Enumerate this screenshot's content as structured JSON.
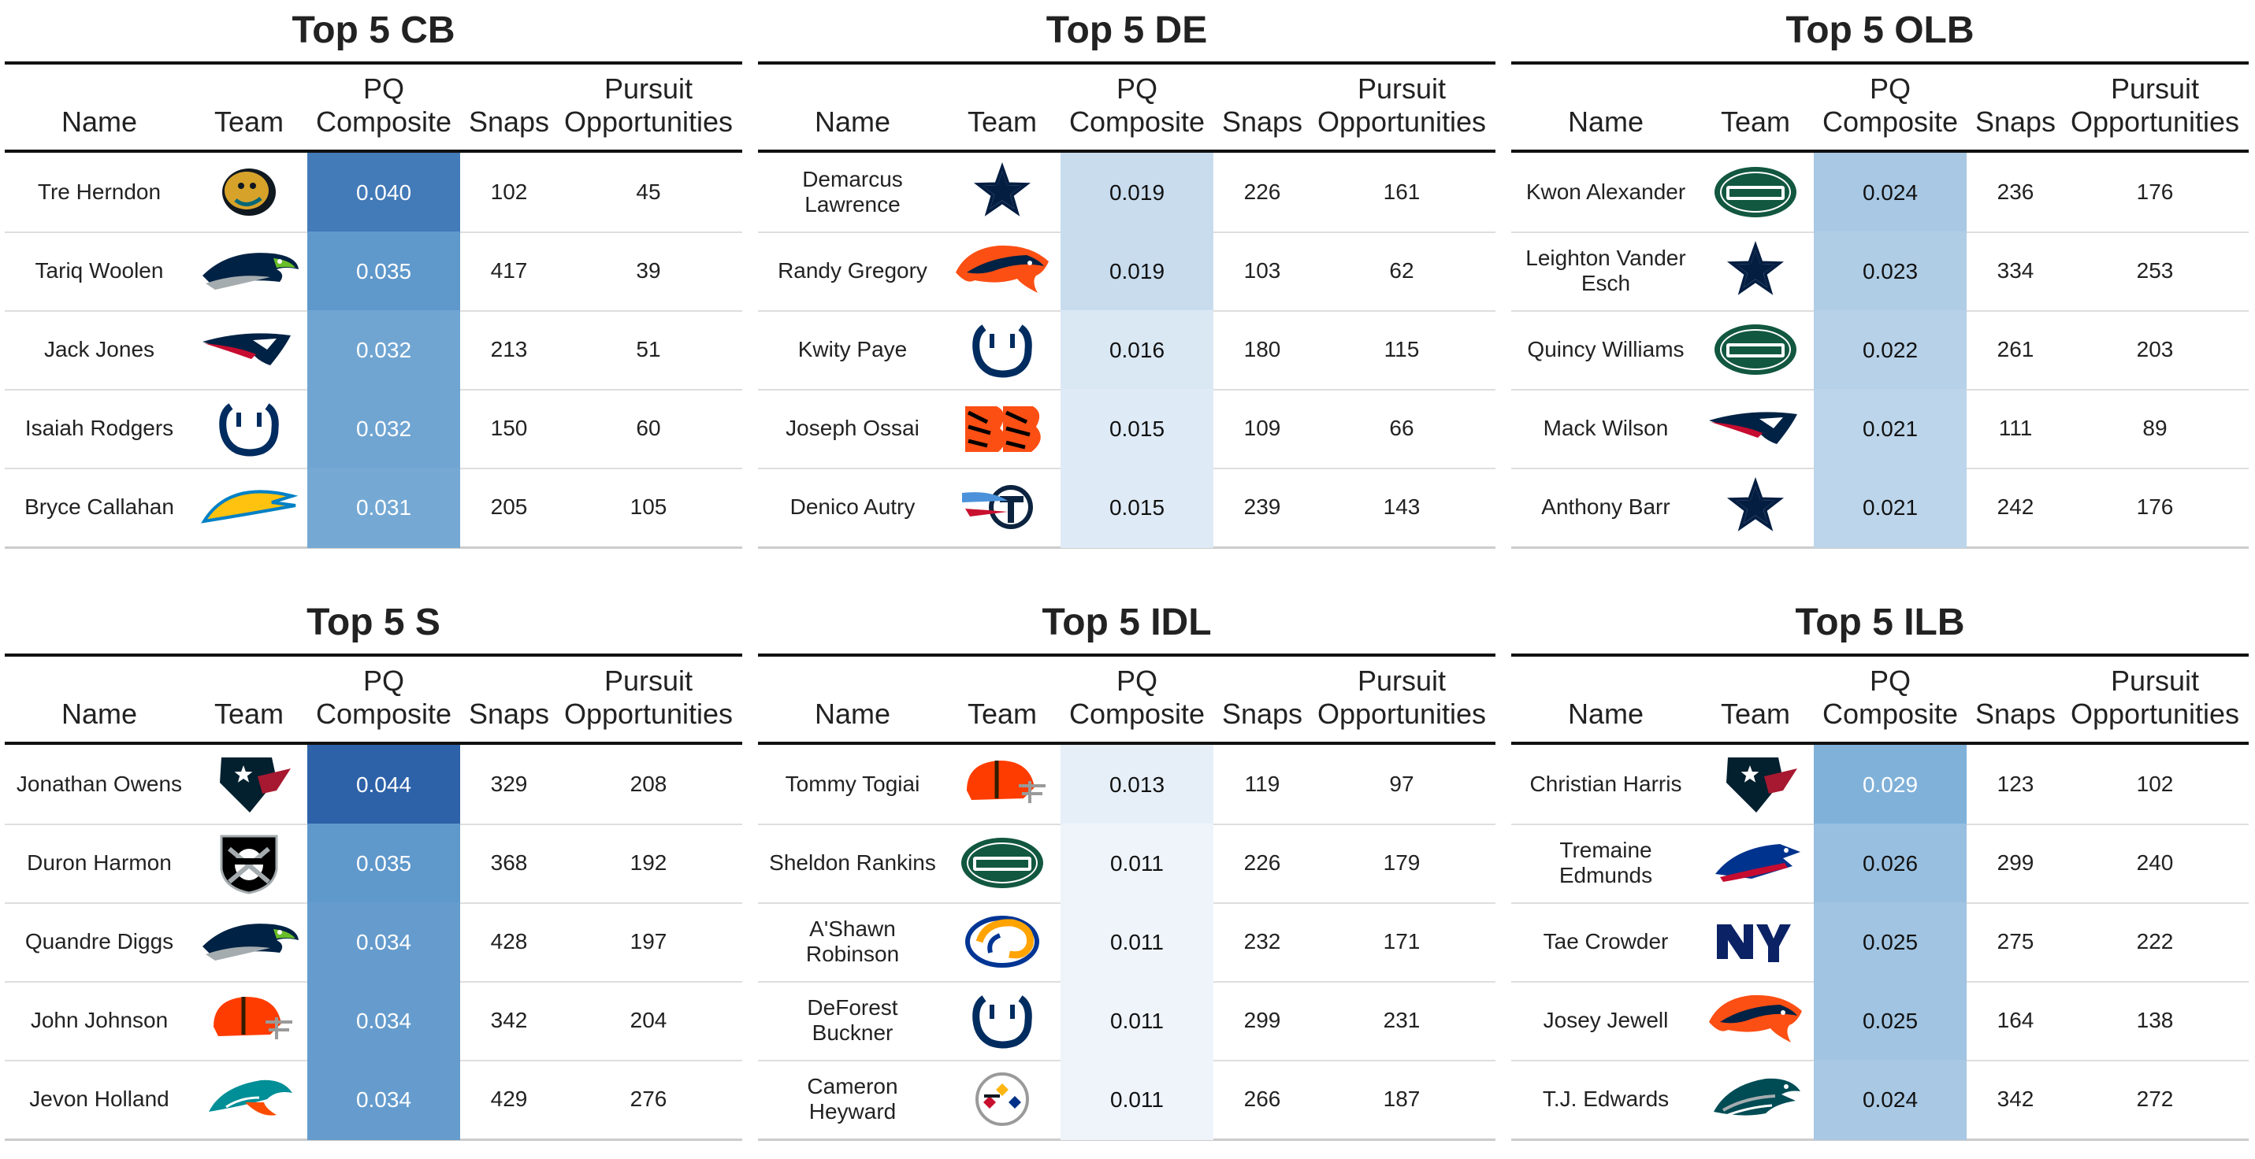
{
  "chart_data": [
    {
      "type": "table",
      "title": "Top 5 CB",
      "columns": [
        "Name",
        "Team",
        "PQ Composite",
        "Snaps",
        "Pursuit Opportunities"
      ],
      "rows": [
        {
          "name": "Tre Herndon",
          "team": "jaguars-logo",
          "pq": "0.040",
          "snaps": "102",
          "pursuit": "45"
        },
        {
          "name": "Tariq Woolen",
          "team": "seahawks-logo",
          "pq": "0.035",
          "snaps": "417",
          "pursuit": "39"
        },
        {
          "name": "Jack Jones",
          "team": "patriots-logo",
          "pq": "0.032",
          "snaps": "213",
          "pursuit": "51"
        },
        {
          "name": "Isaiah Rodgers",
          "team": "colts-logo",
          "pq": "0.032",
          "snaps": "150",
          "pursuit": "60"
        },
        {
          "name": "Bryce Callahan",
          "team": "chargers-logo",
          "pq": "0.031",
          "snaps": "205",
          "pursuit": "105"
        }
      ]
    },
    {
      "type": "table",
      "title": "Top 5 DE",
      "columns": [
        "Name",
        "Team",
        "PQ Composite",
        "Snaps",
        "Pursuit Opportunities"
      ],
      "rows": [
        {
          "name": "Demarcus Lawrence",
          "team": "cowboys-logo",
          "pq": "0.019",
          "snaps": "226",
          "pursuit": "161"
        },
        {
          "name": "Randy Gregory",
          "team": "broncos-logo",
          "pq": "0.019",
          "snaps": "103",
          "pursuit": "62"
        },
        {
          "name": "Kwity Paye",
          "team": "colts-logo",
          "pq": "0.016",
          "snaps": "180",
          "pursuit": "115"
        },
        {
          "name": "Joseph Ossai",
          "team": "bengals-logo",
          "pq": "0.015",
          "snaps": "109",
          "pursuit": "66"
        },
        {
          "name": "Denico Autry",
          "team": "titans-logo",
          "pq": "0.015",
          "snaps": "239",
          "pursuit": "143"
        }
      ]
    },
    {
      "type": "table",
      "title": "Top 5 OLB",
      "columns": [
        "Name",
        "Team",
        "PQ Composite",
        "Snaps",
        "Pursuit Opportunities"
      ],
      "rows": [
        {
          "name": "Kwon Alexander",
          "team": "jets-logo",
          "pq": "0.024",
          "snaps": "236",
          "pursuit": "176"
        },
        {
          "name": "Leighton Vander Esch",
          "team": "cowboys-logo",
          "pq": "0.023",
          "snaps": "334",
          "pursuit": "253"
        },
        {
          "name": "Quincy Williams",
          "team": "jets-logo",
          "pq": "0.022",
          "snaps": "261",
          "pursuit": "203"
        },
        {
          "name": "Mack Wilson",
          "team": "patriots-logo",
          "pq": "0.021",
          "snaps": "111",
          "pursuit": "89"
        },
        {
          "name": "Anthony Barr",
          "team": "cowboys-logo",
          "pq": "0.021",
          "snaps": "242",
          "pursuit": "176"
        }
      ]
    },
    {
      "type": "table",
      "title": "Top 5 S",
      "columns": [
        "Name",
        "Team",
        "PQ Composite",
        "Snaps",
        "Pursuit Opportunities"
      ],
      "rows": [
        {
          "name": "Jonathan Owens",
          "team": "texans-logo",
          "pq": "0.044",
          "snaps": "329",
          "pursuit": "208"
        },
        {
          "name": "Duron Harmon",
          "team": "raiders-logo",
          "pq": "0.035",
          "snaps": "368",
          "pursuit": "192"
        },
        {
          "name": "Quandre Diggs",
          "team": "seahawks-logo",
          "pq": "0.034",
          "snaps": "428",
          "pursuit": "197"
        },
        {
          "name": "John Johnson",
          "team": "browns-logo",
          "pq": "0.034",
          "snaps": "342",
          "pursuit": "204"
        },
        {
          "name": "Jevon Holland",
          "team": "dolphins-logo",
          "pq": "0.034",
          "snaps": "429",
          "pursuit": "276"
        }
      ]
    },
    {
      "type": "table",
      "title": "Top 5 IDL",
      "columns": [
        "Name",
        "Team",
        "PQ Composite",
        "Snaps",
        "Pursuit Opportunities"
      ],
      "rows": [
        {
          "name": "Tommy Togiai",
          "team": "browns-logo",
          "pq": "0.013",
          "snaps": "119",
          "pursuit": "97"
        },
        {
          "name": "Sheldon Rankins",
          "team": "jets-logo",
          "pq": "0.011",
          "snaps": "226",
          "pursuit": "179"
        },
        {
          "name": "A'Shawn Robinson",
          "team": "rams-logo",
          "pq": "0.011",
          "snaps": "232",
          "pursuit": "171"
        },
        {
          "name": "DeForest Buckner",
          "team": "colts-logo",
          "pq": "0.011",
          "snaps": "299",
          "pursuit": "231"
        },
        {
          "name": "Cameron Heyward",
          "team": "steelers-logo",
          "pq": "0.011",
          "snaps": "266",
          "pursuit": "187"
        }
      ]
    },
    {
      "type": "table",
      "title": "Top 5 ILB",
      "columns": [
        "Name",
        "Team",
        "PQ Composite",
        "Snaps",
        "Pursuit Opportunities"
      ],
      "rows": [
        {
          "name": "Christian Harris",
          "team": "texans-logo",
          "pq": "0.029",
          "snaps": "123",
          "pursuit": "102"
        },
        {
          "name": "Tremaine Edmunds",
          "team": "bills-logo",
          "pq": "0.026",
          "snaps": "299",
          "pursuit": "240"
        },
        {
          "name": "Tae Crowder",
          "team": "giants-logo",
          "pq": "0.025",
          "snaps": "275",
          "pursuit": "222"
        },
        {
          "name": "Josey Jewell",
          "team": "broncos-logo",
          "pq": "0.025",
          "snaps": "164",
          "pursuit": "138"
        },
        {
          "name": "T.J. Edwards",
          "team": "eagles-logo",
          "pq": "0.024",
          "snaps": "342",
          "pursuit": "272"
        }
      ]
    }
  ]
}
